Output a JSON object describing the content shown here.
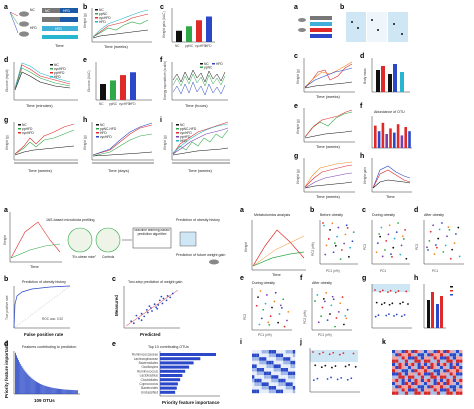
{
  "figure": {
    "colors": {
      "nc": "#111111",
      "cyan": "#27b5d0",
      "green": "#2fa84a",
      "red": "#e02a2a",
      "blue": "#2a48c8",
      "purple": "#7a3fb0",
      "orange": "#f08a1e",
      "gray": "#bbbbbb",
      "lightblue": "#cfe6f5"
    },
    "left": {
      "a": {
        "label": "a",
        "nc": "NC",
        "hfd": "HFD",
        "xlabel": "Time",
        "steps": [
          "NC",
          "HFD",
          "NC",
          "HFD"
        ]
      },
      "b": {
        "label": "b",
        "ylabel": "Weight (g)",
        "xlabel": "Time (weeks)",
        "legend": [
          "NC",
          "ppNC",
          "cycHFD",
          "HFD"
        ]
      },
      "c": {
        "label": "c",
        "ylabel": "Weight gain (AUC)",
        "cats": [
          "NC",
          "ppNC",
          "cycHFD",
          "HFD"
        ],
        "values": [
          30,
          42,
          58,
          68
        ]
      },
      "d": {
        "label": "d",
        "ylabel": "Glucose (mg/dl)",
        "xlabel": "Time (minutes)",
        "legend": [
          "NC",
          "cycHFD",
          "ppHFD",
          "HFD"
        ]
      },
      "e": {
        "label": "e",
        "ylabel": "Glucose (AUC)",
        "cats": [
          "NC",
          "ppNC",
          "cycHFD",
          "HFD"
        ],
        "values": [
          45,
          55,
          70,
          78
        ]
      },
      "f": {
        "label": "f",
        "ylabel": "Energy expenditure (kcal/h)",
        "xlabel": "Time (hours)",
        "legend": [
          "NC",
          "ppNC",
          "HFD"
        ]
      },
      "g": {
        "label": "g",
        "ylabel": "Weight (g)",
        "xlabel": "Time (weeks)",
        "legend": [
          "NC",
          "ppHFD",
          "cycHFD"
        ]
      },
      "h": {
        "label": "h",
        "ylabel": "Weight (g)",
        "xlabel": "Time (days)",
        "legend": [
          "NC",
          "ppNC-HFD",
          "HFD",
          "cycHFD"
        ]
      },
      "i": {
        "label": "i",
        "ylabel": "Weight (g)",
        "xlabel": "Time (weeks)",
        "legend": [
          "NC",
          "ppNC-HFD",
          "cycHFD",
          "ppHFD",
          "HFD"
        ]
      }
    },
    "right": {
      "a": {
        "label": "a"
      },
      "b": {
        "label": "b"
      },
      "c": {
        "label": "c",
        "ylabel": "Weight (g)",
        "xlabel": "Time (weeks)"
      },
      "d": {
        "label": "d",
        "ylabel": "Body mass"
      },
      "e": {
        "label": "e",
        "ylabel": "Weight (g)",
        "xlabel": "Time (weeks)"
      },
      "f": {
        "label": "f",
        "title": "Abundance of OTU"
      },
      "g": {
        "label": "g",
        "ylabel": "Weight (g)",
        "xlabel": "Time (weeks)"
      },
      "h": {
        "label": "h",
        "ylabel": "Weight gain",
        "xlabel": "Time"
      }
    },
    "ml": {
      "a": {
        "label": "a",
        "weight": "Weight",
        "profiling": "16S-based microbiota profiling",
        "prediction_history": "Prediction of obesity history",
        "ml_box": "Machine learning based prediction algorithm",
        "prediction_future": "Prediction of future weight gain",
        "controls": "Controls",
        "ex_obese": "\"Ex-obese mice\"",
        "time": "Time"
      },
      "b": {
        "label": "b",
        "title": "Prediction of obesity history",
        "ylabel": "True positive rate",
        "xlabel": "False positive rate",
        "auc": "ROC auc: 0.92"
      },
      "c": {
        "label": "c",
        "title": "Two-step prediction of weight gain",
        "ylabel": "Measured",
        "xlabel": "Predicted"
      },
      "d": {
        "label": "d",
        "title": "Features contributing to prediction",
        "ylabel": "Priority feature importance",
        "xlabel": "109 OTUs"
      },
      "e": {
        "label": "e",
        "title": "Top 10 contributing OTUs",
        "xlabel": "Priority feature importance",
        "otus": [
          "Ruminococcaceae",
          "Lachnospiraceae",
          "Bacteroidales",
          "Oscillospira",
          "Ruminococcus",
          "Lactobacillus",
          "Clostridiales",
          "Coprococcus",
          "Bacteroides",
          "Unclassified"
        ],
        "values": [
          1.0,
          0.72,
          0.6,
          0.52,
          0.45,
          0.4,
          0.36,
          0.32,
          0.3,
          0.27
        ]
      }
    },
    "omics": {
      "a": {
        "label": "a",
        "title": "Metabolomics analysis",
        "ylabel": "Weight",
        "xlabel": "Time"
      },
      "b": {
        "label": "b",
        "title": "Before obesity",
        "xlabel": "PC1 (x%)",
        "ylabel": "PC2 (x%)"
      },
      "c": {
        "label": "c",
        "title": "During obesity",
        "xlabel": "PC1",
        "ylabel": "PC2"
      },
      "d": {
        "label": "d",
        "title": "After obesity",
        "xlabel": "PC1",
        "ylabel": "PC2"
      },
      "e": {
        "label": "e",
        "title": "During obesity",
        "xlabel": "PC1 (x%)",
        "ylabel": "PC2"
      },
      "f": {
        "label": "f",
        "title": "After obesity",
        "xlabel": "PC1 (x%)",
        "ylabel": "PC2 (x%)"
      },
      "g": {
        "label": "g"
      },
      "h": {
        "label": "h"
      },
      "i": {
        "label": "i"
      },
      "j": {
        "label": "j"
      },
      "k": {
        "label": "k"
      }
    }
  }
}
